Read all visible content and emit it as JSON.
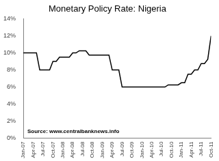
{
  "chart_data": {
    "type": "line",
    "title": "Monetary Policy Rate: Nigeria",
    "annotation": "Source: www.centralbanknews.info",
    "categories": [
      "Jan-07",
      null,
      null,
      "Apr-07",
      null,
      null,
      "Jul-07",
      null,
      null,
      "Oct-07",
      null,
      null,
      "Jan-08",
      null,
      null,
      "Apr-08",
      null,
      null,
      "Jul-08",
      null,
      null,
      "Oct-08",
      null,
      null,
      "Jan-09",
      null,
      null,
      "Apr-09",
      null,
      null,
      "Jul-09",
      null,
      null,
      "Oct-09",
      null,
      null,
      "Jan-10",
      null,
      null,
      "Apr-10",
      null,
      null,
      "Jul-10",
      null,
      null,
      "Oct-10",
      null,
      null,
      "Jan-11",
      null,
      null,
      "Apr-11",
      null,
      null,
      "Jul-11",
      null,
      null,
      "Oct-11"
    ],
    "values": [
      10,
      10,
      10,
      10,
      10,
      8,
      8,
      8,
      8,
      9,
      9,
      9.5,
      9.5,
      9.5,
      9.5,
      10,
      10,
      10.25,
      10.25,
      10.25,
      9.75,
      9.75,
      9.75,
      9.75,
      9.75,
      9.75,
      9.75,
      8,
      8,
      8,
      6,
      6,
      6,
      6,
      6,
      6,
      6,
      6,
      6,
      6,
      6,
      6,
      6,
      6,
      6.25,
      6.25,
      6.25,
      6.25,
      6.5,
      6.5,
      7.5,
      7.5,
      8,
      8,
      8.75,
      8.75,
      9.25,
      12
    ],
    "color": "#000000",
    "ylim": [
      0,
      14
    ],
    "yticks": [
      {
        "value": 0,
        "label": "0%"
      },
      {
        "value": 2,
        "label": "2%"
      },
      {
        "value": 4,
        "label": "4%"
      },
      {
        "value": 6,
        "label": "6%"
      },
      {
        "value": 8,
        "label": "8%"
      },
      {
        "value": 10,
        "label": "10%"
      },
      {
        "value": 12,
        "label": "12%"
      },
      {
        "value": 14,
        "label": "14%"
      }
    ],
    "grid": false
  }
}
